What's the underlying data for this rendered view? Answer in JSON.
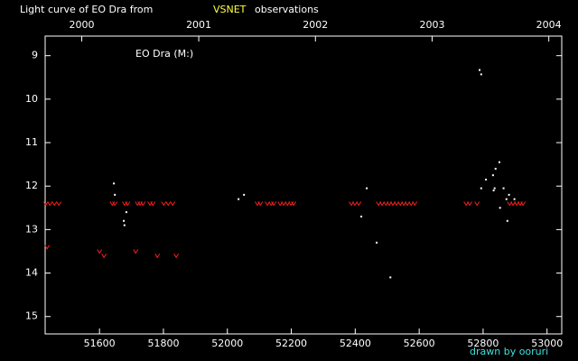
{
  "chart_data": {
    "type": "scatter",
    "title": "Light curve of EO Dra from",
    "title_source": "VSNET",
    "title_suffix": "observations",
    "annotation": "EO Dra (M:)",
    "credit": "drawn by ooruri",
    "xlim": [
      51430,
      53046
    ],
    "ylim": [
      15.4,
      8.55
    ],
    "xticks": [
      51600,
      51800,
      52000,
      52200,
      52400,
      52600,
      52800,
      53000
    ],
    "yticks": [
      9,
      10,
      11,
      12,
      13,
      14,
      15
    ],
    "x2ticks": [
      {
        "value": 51544.5,
        "label": "2000"
      },
      {
        "value": 51910.5,
        "label": "2001"
      },
      {
        "value": 52275.5,
        "label": "2002"
      },
      {
        "value": 52640.5,
        "label": "2003"
      },
      {
        "value": 53005.5,
        "label": "2004"
      }
    ],
    "series": [
      {
        "color": "#ffffff",
        "marker": "dot",
        "x": [
          51645,
          51648,
          51676,
          51678,
          51684,
          52035,
          52052,
          52419,
          52436,
          52467,
          52510,
          52789,
          52794,
          52794,
          52809,
          52831,
          52833,
          52836,
          52839,
          52851,
          52853,
          52864,
          52873,
          52876,
          52881,
          52898
        ],
        "values": [
          11.94,
          12.2,
          12.8,
          12.9,
          12.6,
          12.3,
          12.2,
          12.7,
          12.05,
          13.3,
          14.1,
          9.33,
          9.43,
          12.05,
          11.85,
          11.75,
          12.1,
          12.05,
          11.6,
          11.45,
          12.5,
          12.05,
          12.3,
          12.8,
          12.2,
          12.3
        ]
      },
      {
        "color": "#ff2020",
        "marker": "v",
        "x": [
          51432,
          51445,
          51459,
          51473,
          51640,
          51648,
          51679,
          51688,
          51719,
          51727,
          51736,
          51758,
          51767,
          51801,
          51815,
          51829,
          52094,
          52103,
          52125,
          52137,
          52145,
          52165,
          52176,
          52188,
          52199,
          52207,
          52388,
          52399,
          52411,
          52473,
          52484,
          52496,
          52507,
          52518,
          52529,
          52541,
          52552,
          52563,
          52575,
          52586,
          52747,
          52758,
          52781,
          52883,
          52894,
          52905,
          52916,
          52925,
          51436,
          51600,
          51614,
          51713,
          51781,
          51840
        ],
        "values": [
          12.4,
          12.4,
          12.4,
          12.4,
          12.4,
          12.4,
          12.4,
          12.4,
          12.4,
          12.4,
          12.4,
          12.4,
          12.4,
          12.4,
          12.4,
          12.4,
          12.4,
          12.4,
          12.4,
          12.4,
          12.4,
          12.4,
          12.4,
          12.4,
          12.4,
          12.4,
          12.4,
          12.4,
          12.4,
          12.4,
          12.4,
          12.4,
          12.4,
          12.4,
          12.4,
          12.4,
          12.4,
          12.4,
          12.4,
          12.4,
          12.4,
          12.4,
          12.4,
          12.4,
          12.4,
          12.4,
          12.4,
          12.4,
          13.4,
          13.5,
          13.6,
          13.5,
          13.6,
          13.6
        ]
      }
    ]
  }
}
